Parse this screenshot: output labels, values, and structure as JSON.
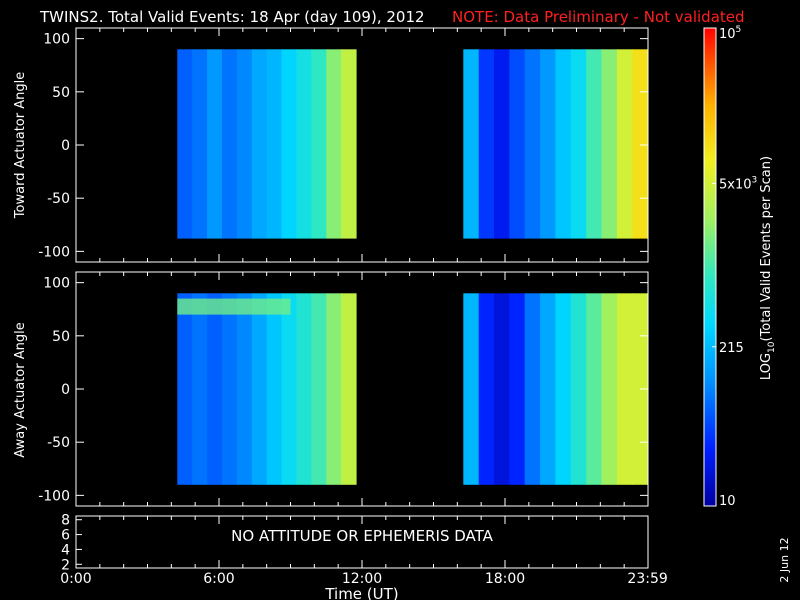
{
  "title": "TWINS2. Total Valid Events: 18 Apr (day 109), 2012",
  "note": "NOTE: Data Preliminary - Not validated",
  "footer_date": "2 Jun 12",
  "colors": {
    "background": "#000000",
    "axes": "#ffffff",
    "note": "#ff2020"
  },
  "chart_data": [
    {
      "type": "heatmap",
      "ylabel": "Toward Actuator Angle",
      "ylim": [
        -110,
        110
      ],
      "yticks": [
        100,
        50,
        0,
        -50,
        -100
      ],
      "xlim_hours": [
        0,
        24
      ],
      "data_blocks": [
        {
          "start": "04:15",
          "end": "11:45",
          "angle_range": [
            -88,
            90
          ],
          "log10_profile": [
            1.8,
            1.9,
            2.1,
            1.9,
            2.0,
            2.2,
            2.3,
            2.5,
            2.7,
            2.9,
            3.3,
            3.6
          ]
        },
        {
          "start": "16:15",
          "end": "23:59",
          "angle_range": [
            -88,
            90
          ],
          "log10_profile": [
            2.3,
            1.6,
            1.4,
            1.7,
            1.9,
            2.1,
            2.4,
            2.6,
            3.0,
            3.3,
            3.7,
            4.0
          ]
        }
      ]
    },
    {
      "type": "heatmap",
      "ylabel": "Away Actuator Angle",
      "ylim": [
        -110,
        110
      ],
      "yticks": [
        100,
        50,
        0,
        -50,
        -100
      ],
      "xlim_hours": [
        0,
        24
      ],
      "data_blocks": [
        {
          "start": "04:15",
          "end": "11:45",
          "angle_range": [
            -90,
            90
          ],
          "log10_profile": [
            1.8,
            1.9,
            1.8,
            1.9,
            2.0,
            2.2,
            2.4,
            2.6,
            2.8,
            3.0,
            3.3,
            3.6
          ]
        },
        {
          "start": "16:15",
          "end": "23:59",
          "angle_range": [
            -90,
            90
          ],
          "log10_profile": [
            2.3,
            1.5,
            1.3,
            1.5,
            1.9,
            2.2,
            2.5,
            2.8,
            3.1,
            3.4,
            3.7,
            3.7
          ]
        }
      ],
      "band": {
        "angle_range": [
          70,
          85
        ],
        "log10": 3.2,
        "hours": [
          4.25,
          9.0
        ]
      }
    },
    {
      "type": "line",
      "yticks": [
        8,
        6,
        4,
        2
      ],
      "ylim": [
        1.5,
        8.5
      ],
      "message": "NO ATTITUDE OR EPHEMERIS DATA",
      "xlabel": "Time (UT)",
      "xtick_labels": [
        "0:00",
        "6:00",
        "12:00",
        "18:00",
        "23:59"
      ],
      "xtick_hours": [
        0,
        6,
        12,
        18,
        23.983
      ]
    }
  ],
  "colorbar": {
    "label": "LOG10(Total Valid Events per Scan)",
    "label_base": "LOG",
    "label_sub": "10",
    "label_rest": "(Total Valid Events per Scan)",
    "scale": "log",
    "range": [
      10,
      100000
    ],
    "ticks": [
      {
        "value": 100000,
        "label": "10^5",
        "base": "10",
        "exp": "5"
      },
      {
        "value": 5000,
        "label": "5x10^3",
        "base": "5x10",
        "exp": "3"
      },
      {
        "value": 215,
        "label": "215",
        "base": "215",
        "exp": ""
      },
      {
        "value": 10,
        "label": "10",
        "base": "10",
        "exp": ""
      }
    ]
  }
}
